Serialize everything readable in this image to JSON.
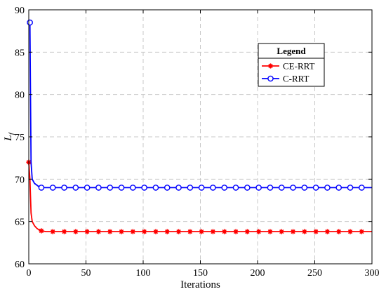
{
  "chart_data": {
    "type": "line",
    "title": "",
    "xlabel": "Iterations",
    "ylabel": {
      "main": "L",
      "sub": "f"
    },
    "xlim": [
      0,
      300
    ],
    "ylim": [
      60,
      90
    ],
    "xticks": [
      "0",
      "50",
      "100",
      "150",
      "200",
      "250",
      "300"
    ],
    "yticks": [
      "60",
      "65",
      "70",
      "75",
      "80",
      "85",
      "90"
    ],
    "grid": true,
    "legend": {
      "title": "Legend",
      "position": "top-right"
    },
    "series": [
      {
        "name": "CE-RRT",
        "color": "#ff0000",
        "marker": "asterisk",
        "x": [
          0,
          1,
          2,
          3,
          5,
          7,
          9,
          11,
          15,
          20,
          30,
          50,
          100,
          200,
          300
        ],
        "y": [
          72.0,
          70.0,
          66.0,
          65.0,
          64.5,
          64.2,
          64.0,
          63.9,
          63.8,
          63.8,
          63.8,
          63.8,
          63.8,
          63.8,
          63.8
        ],
        "marker_x": [
          0,
          11,
          21,
          31,
          41,
          51,
          61,
          71,
          81,
          91,
          101,
          111,
          121,
          131,
          141,
          151,
          161,
          171,
          181,
          191,
          201,
          211,
          221,
          231,
          241,
          251,
          261,
          271,
          281,
          291
        ]
      },
      {
        "name": "C-RRT",
        "color": "#0000ff",
        "marker": "circle",
        "x": [
          1,
          1.5,
          2,
          3,
          5,
          7,
          9,
          11,
          15,
          20,
          30,
          50,
          100,
          200,
          300
        ],
        "y": [
          88.5,
          80.0,
          72.0,
          70.0,
          69.5,
          69.3,
          69.1,
          69.0,
          69.0,
          69.0,
          69.0,
          69.0,
          69.0,
          69.0,
          69.0
        ],
        "marker_x": [
          1,
          11,
          21,
          31,
          41,
          51,
          61,
          71,
          81,
          91,
          101,
          111,
          121,
          131,
          141,
          151,
          161,
          171,
          181,
          191,
          201,
          211,
          221,
          231,
          241,
          251,
          261,
          271,
          281,
          291
        ]
      }
    ]
  }
}
